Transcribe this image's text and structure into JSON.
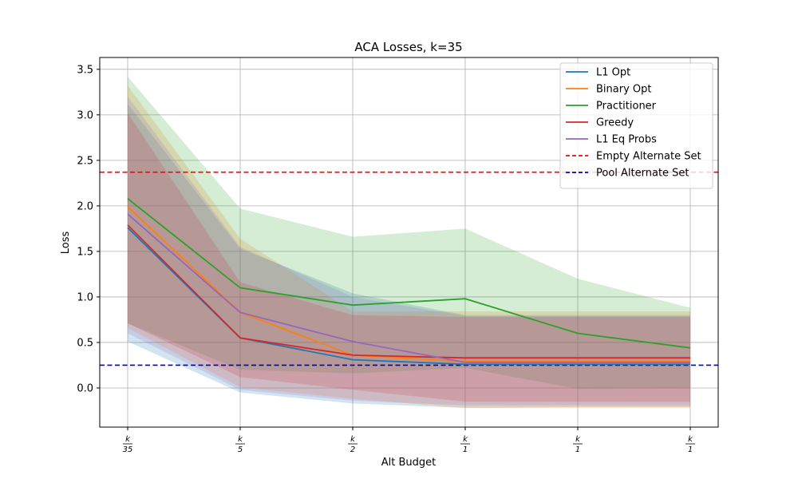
{
  "chart_data": {
    "type": "line",
    "title": "ACA Losses, k=35",
    "xlabel": "Alt Budget",
    "ylabel": "Loss",
    "x_ticks": [
      {
        "num": "k",
        "den": "35"
      },
      {
        "num": "k",
        "den": "5"
      },
      {
        "num": "k",
        "den": "2"
      },
      {
        "num": "k",
        "den": "1"
      },
      {
        "num": "k",
        "den": "1"
      },
      {
        "num": "k",
        "den": "1"
      }
    ],
    "y_ticks": [
      "0.0",
      "0.5",
      "1.0",
      "1.5",
      "2.0",
      "2.5",
      "3.0",
      "3.5"
    ],
    "ylim": [
      -0.43,
      3.63
    ],
    "grid": true,
    "legend_position": "top-right",
    "series": [
      {
        "name": "L1 Opt",
        "color": "#1f77b4",
        "values": [
          1.76,
          0.55,
          0.31,
          0.26,
          0.26,
          0.26
        ],
        "lower": [
          0.51,
          -0.05,
          -0.17,
          -0.22,
          -0.21,
          -0.21
        ],
        "upper": [
          3.12,
          1.53,
          1.04,
          0.8,
          0.8,
          0.8
        ]
      },
      {
        "name": "Binary Opt",
        "color": "#ff7f0e",
        "values": [
          1.99,
          0.83,
          0.36,
          0.29,
          0.29,
          0.29
        ],
        "lower": [
          0.66,
          0.01,
          -0.12,
          -0.22,
          -0.22,
          -0.22
        ],
        "upper": [
          3.32,
          1.64,
          0.84,
          0.84,
          0.84,
          0.84
        ]
      },
      {
        "name": "Practitioner",
        "color": "#2ca02c",
        "values": [
          2.08,
          1.1,
          0.91,
          0.98,
          0.6,
          0.44
        ],
        "lower": [
          0.71,
          0.2,
          0.16,
          0.22,
          -0.01,
          0.0
        ],
        "upper": [
          3.42,
          1.97,
          1.66,
          1.75,
          1.2,
          0.88
        ]
      },
      {
        "name": "Greedy",
        "color": "#d62728",
        "values": [
          1.79,
          0.55,
          0.36,
          0.33,
          0.33,
          0.33
        ],
        "lower": [
          0.71,
          0.12,
          -0.02,
          -0.15,
          -0.15,
          -0.15
        ],
        "upper": [
          3.02,
          1.16,
          0.8,
          0.78,
          0.78,
          0.78
        ]
      },
      {
        "name": "L1 Eq Probs",
        "color": "#9467bd",
        "values": [
          1.91,
          0.83,
          0.51,
          0.28,
          0.28,
          0.28
        ],
        "lower": [
          0.6,
          -0.02,
          -0.14,
          -0.19,
          -0.19,
          -0.19
        ],
        "upper": [
          3.2,
          1.55,
          1.0,
          0.79,
          0.79,
          0.79
        ]
      }
    ],
    "reference_lines": [
      {
        "name": "Empty Alternate Set",
        "color": "#ff0000",
        "y": 2.37
      },
      {
        "name": "Pool Alternate Set",
        "color": "#0000cc",
        "y": 0.25
      }
    ]
  }
}
